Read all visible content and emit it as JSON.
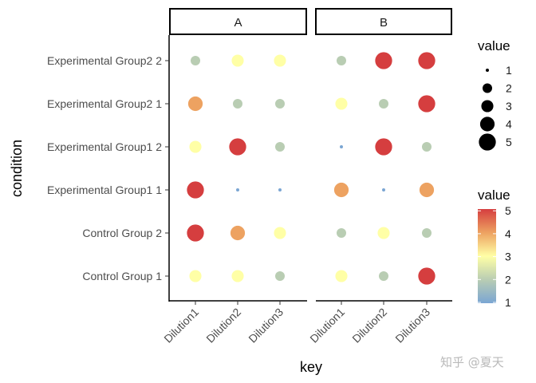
{
  "chart_data": {
    "type": "scatter",
    "xlabel": "key",
    "ylabel": "condition",
    "panels": [
      "A",
      "B"
    ],
    "x_categories": [
      "Dilution1",
      "Dilution2",
      "Dilution3"
    ],
    "y_categories": [
      "Control Group 1",
      "Control Group 2",
      "Experimental Group1 1",
      "Experimental Group1 2",
      "Experimental Group2 1",
      "Experimental Group2 2"
    ],
    "size_legend": {
      "title": "value",
      "values": [
        "1",
        "2",
        "3",
        "4",
        "5"
      ]
    },
    "color_legend": {
      "title": "value",
      "values": [
        "1",
        "2",
        "3",
        "4",
        "5"
      ],
      "colors": [
        "#7ba6d3",
        "#b9cdb3",
        "#ffffa6",
        "#eda261",
        "#d53e3f"
      ]
    },
    "points": [
      {
        "panel": "A",
        "condition": "Experimental Group2 2",
        "key": "Dilution1",
        "value": 2
      },
      {
        "panel": "A",
        "condition": "Experimental Group2 2",
        "key": "Dilution2",
        "value": 3
      },
      {
        "panel": "A",
        "condition": "Experimental Group2 2",
        "key": "Dilution3",
        "value": 3
      },
      {
        "panel": "A",
        "condition": "Experimental Group2 1",
        "key": "Dilution1",
        "value": 4
      },
      {
        "panel": "A",
        "condition": "Experimental Group2 1",
        "key": "Dilution2",
        "value": 2
      },
      {
        "panel": "A",
        "condition": "Experimental Group2 1",
        "key": "Dilution3",
        "value": 2
      },
      {
        "panel": "A",
        "condition": "Experimental Group1 2",
        "key": "Dilution1",
        "value": 3
      },
      {
        "panel": "A",
        "condition": "Experimental Group1 2",
        "key": "Dilution2",
        "value": 5
      },
      {
        "panel": "A",
        "condition": "Experimental Group1 2",
        "key": "Dilution3",
        "value": 2
      },
      {
        "panel": "A",
        "condition": "Experimental Group1 1",
        "key": "Dilution1",
        "value": 5
      },
      {
        "panel": "A",
        "condition": "Experimental Group1 1",
        "key": "Dilution2",
        "value": 1
      },
      {
        "panel": "A",
        "condition": "Experimental Group1 1",
        "key": "Dilution3",
        "value": 1
      },
      {
        "panel": "A",
        "condition": "Control Group 2",
        "key": "Dilution1",
        "value": 5
      },
      {
        "panel": "A",
        "condition": "Control Group 2",
        "key": "Dilution2",
        "value": 4
      },
      {
        "panel": "A",
        "condition": "Control Group 2",
        "key": "Dilution3",
        "value": 3
      },
      {
        "panel": "A",
        "condition": "Control Group 1",
        "key": "Dilution1",
        "value": 3
      },
      {
        "panel": "A",
        "condition": "Control Group 1",
        "key": "Dilution2",
        "value": 3
      },
      {
        "panel": "A",
        "condition": "Control Group 1",
        "key": "Dilution3",
        "value": 2
      },
      {
        "panel": "B",
        "condition": "Experimental Group2 2",
        "key": "Dilution1",
        "value": 2
      },
      {
        "panel": "B",
        "condition": "Experimental Group2 2",
        "key": "Dilution2",
        "value": 5
      },
      {
        "panel": "B",
        "condition": "Experimental Group2 2",
        "key": "Dilution3",
        "value": 5
      },
      {
        "panel": "B",
        "condition": "Experimental Group2 1",
        "key": "Dilution1",
        "value": 3
      },
      {
        "panel": "B",
        "condition": "Experimental Group2 1",
        "key": "Dilution2",
        "value": 2
      },
      {
        "panel": "B",
        "condition": "Experimental Group2 1",
        "key": "Dilution3",
        "value": 5
      },
      {
        "panel": "B",
        "condition": "Experimental Group1 2",
        "key": "Dilution1",
        "value": 1
      },
      {
        "panel": "B",
        "condition": "Experimental Group1 2",
        "key": "Dilution2",
        "value": 5
      },
      {
        "panel": "B",
        "condition": "Experimental Group1 2",
        "key": "Dilution3",
        "value": 2
      },
      {
        "panel": "B",
        "condition": "Experimental Group1 1",
        "key": "Dilution1",
        "value": 4
      },
      {
        "panel": "B",
        "condition": "Experimental Group1 1",
        "key": "Dilution2",
        "value": 1
      },
      {
        "panel": "B",
        "condition": "Experimental Group1 1",
        "key": "Dilution3",
        "value": 4
      },
      {
        "panel": "B",
        "condition": "Control Group 2",
        "key": "Dilution1",
        "value": 2
      },
      {
        "panel": "B",
        "condition": "Control Group 2",
        "key": "Dilution2",
        "value": 3
      },
      {
        "panel": "B",
        "condition": "Control Group 2",
        "key": "Dilution3",
        "value": 2
      },
      {
        "panel": "B",
        "condition": "Control Group 1",
        "key": "Dilution1",
        "value": 3
      },
      {
        "panel": "B",
        "condition": "Control Group 1",
        "key": "Dilution2",
        "value": 2
      },
      {
        "panel": "B",
        "condition": "Control Group 1",
        "key": "Dilution3",
        "value": 5
      }
    ]
  },
  "watermark": "知乎 @夏天"
}
